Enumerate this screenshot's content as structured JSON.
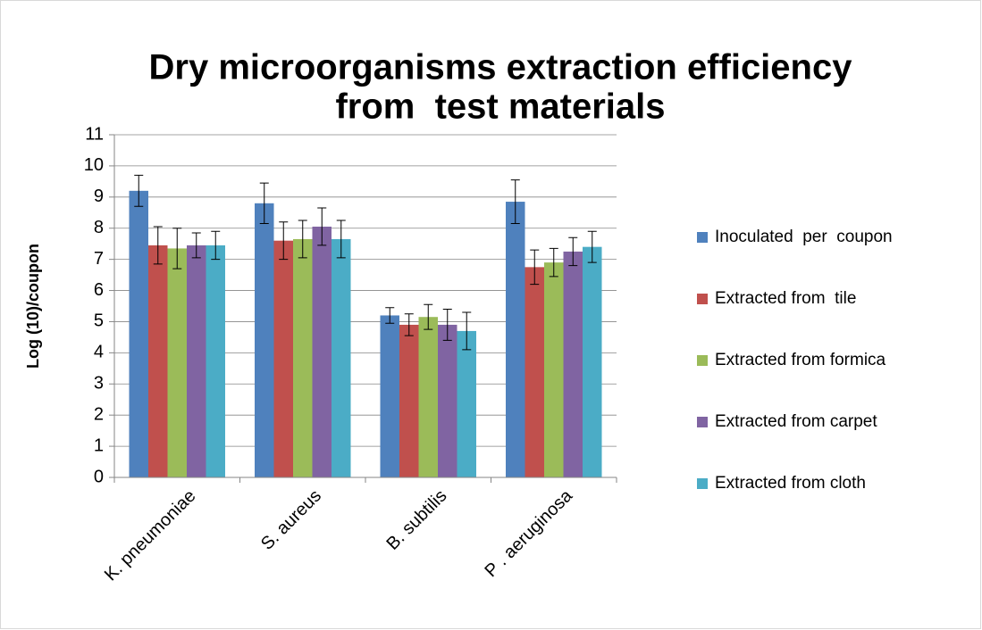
{
  "chart_data": {
    "type": "bar",
    "title": [
      "Dry microorganisms extraction efficiency",
      "from  test materials"
    ],
    "ylabel": "Log (10)/coupon",
    "categories": [
      "K. pneumoniae",
      "S. aureus",
      "B. subtilis",
      "P . aeruginosa"
    ],
    "series": [
      {
        "name": "Inoculated  per  coupon",
        "color": "#4f81bd",
        "values": [
          9.2,
          8.8,
          5.2,
          8.85
        ],
        "errors": [
          0.5,
          0.65,
          0.25,
          0.7
        ]
      },
      {
        "name": "Extracted from  tile",
        "color": "#c0504d",
        "values": [
          7.45,
          7.6,
          4.9,
          6.75
        ],
        "errors": [
          0.6,
          0.6,
          0.35,
          0.55
        ]
      },
      {
        "name": "Extracted from formica",
        "color": "#9bbb59",
        "values": [
          7.35,
          7.65,
          5.15,
          6.9
        ],
        "errors": [
          0.65,
          0.6,
          0.4,
          0.45
        ]
      },
      {
        "name": "Extracted from carpet",
        "color": "#8064a2",
        "values": [
          7.45,
          8.05,
          4.9,
          7.25
        ],
        "errors": [
          0.4,
          0.6,
          0.5,
          0.45
        ]
      },
      {
        "name": "Extracted from cloth",
        "color": "#4bacc6",
        "values": [
          7.45,
          7.65,
          4.7,
          7.4
        ],
        "errors": [
          0.45,
          0.6,
          0.6,
          0.5
        ]
      }
    ],
    "ylim": [
      0,
      11
    ],
    "yticks": [
      0,
      1,
      2,
      3,
      4,
      5,
      6,
      7,
      8,
      9,
      10,
      11
    ],
    "grid": true,
    "legend": "right"
  }
}
